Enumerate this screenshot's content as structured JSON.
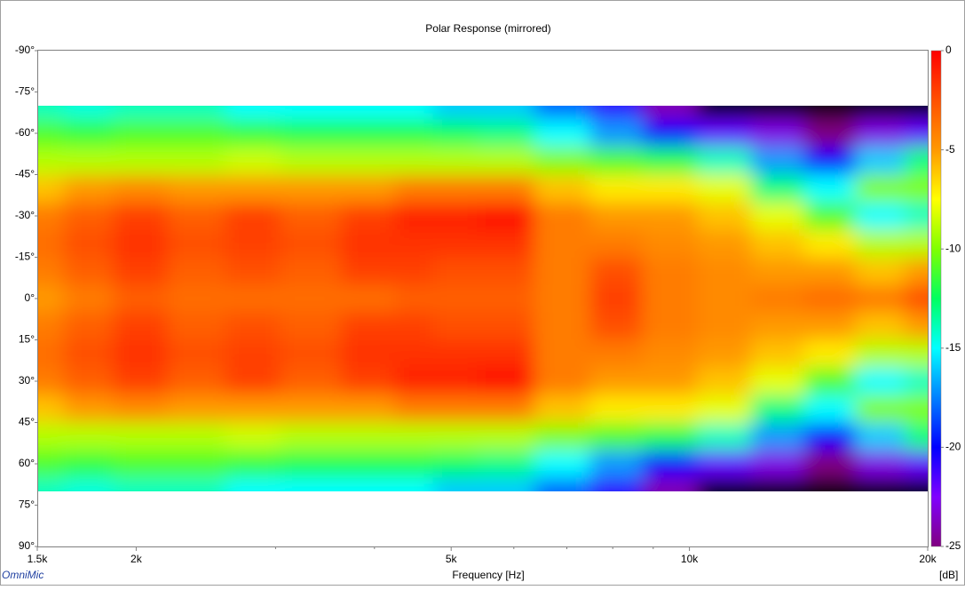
{
  "chart_data": {
    "type": "heatmap",
    "title": "Polar Response (mirrored)",
    "x_label": "Frequency [Hz]",
    "colorbar_label": "[dB]",
    "watermark": "OmniMic",
    "x_log": true,
    "xlim": [
      1500,
      20000
    ],
    "xticks": [
      {
        "value": 1500,
        "label": "1.5k"
      },
      {
        "value": 2000,
        "label": "2k"
      },
      {
        "value": 5000,
        "label": "5k"
      },
      {
        "value": 10000,
        "label": "10k"
      },
      {
        "value": 20000,
        "label": "20k"
      }
    ],
    "xminorticks": [
      3000,
      4000,
      6000,
      7000,
      8000,
      9000
    ],
    "ylim": [
      -90,
      90
    ],
    "yticks": [
      {
        "value": -90,
        "label": "-90°"
      },
      {
        "value": -75,
        "label": "-75°"
      },
      {
        "value": -60,
        "label": "-60°"
      },
      {
        "value": -45,
        "label": "-45°"
      },
      {
        "value": -30,
        "label": "-30°"
      },
      {
        "value": -15,
        "label": "-15°"
      },
      {
        "value": 0,
        "label": "0°"
      },
      {
        "value": 15,
        "label": "15°"
      },
      {
        "value": 30,
        "label": "30°"
      },
      {
        "value": 45,
        "label": "45°"
      },
      {
        "value": 60,
        "label": "60°"
      },
      {
        "value": 75,
        "label": "75°"
      },
      {
        "value": 90,
        "label": "90°"
      }
    ],
    "zlim": [
      -25,
      0
    ],
    "zticks": [
      0,
      -5,
      -10,
      -15,
      -20,
      -25
    ],
    "colormap": [
      "#800080",
      "#8000ff",
      "#0000ff",
      "#0080ff",
      "#00ffff",
      "#00ff60",
      "#80ff00",
      "#ffff00",
      "#ff9900",
      "#ff5000",
      "#ff0000"
    ],
    "below_color": "#000000",
    "x": [
      1500,
      1750,
      2000,
      2400,
      2800,
      3300,
      4000,
      4500,
      5000,
      5800,
      7000,
      8000,
      9500,
      11000,
      13000,
      15000,
      17500,
      20000
    ],
    "y": [
      -70,
      -60,
      -50,
      -40,
      -30,
      -20,
      -10,
      0,
      10,
      20,
      30,
      40,
      50,
      60,
      70
    ],
    "z": [
      [
        -14,
        -14.5,
        -14,
        -14,
        -15,
        -15,
        -15,
        -15,
        -16,
        -16,
        -18,
        -21,
        -24,
        -26,
        -30,
        -30,
        -30,
        -30
      ],
      [
        -11,
        -11.5,
        -11,
        -11,
        -11.5,
        -12,
        -12,
        -12,
        -12.5,
        -13,
        -15,
        -17,
        -20,
        -22,
        -23,
        -25,
        -23,
        -22
      ],
      [
        -9,
        -9,
        -9,
        -9,
        -8.5,
        -9,
        -9,
        -9,
        -9,
        -9,
        -10,
        -11,
        -12,
        -14,
        -17,
        -20,
        -16,
        -13
      ],
      [
        -6,
        -5,
        -4.5,
        -5,
        -5,
        -5,
        -5,
        -4,
        -4,
        -4,
        -6,
        -7,
        -7,
        -8,
        -13,
        -15,
        -10,
        -10
      ],
      [
        -4,
        -3,
        -2,
        -3,
        -2,
        -3,
        -2,
        -1,
        -1,
        -0.5,
        -4,
        -5,
        -5,
        -6,
        -8,
        -11,
        -15,
        -14
      ],
      [
        -3.5,
        -2.5,
        -1.5,
        -2.5,
        -2,
        -2.5,
        -1.5,
        -1.5,
        -1.5,
        -1.5,
        -4,
        -4,
        -4.5,
        -5,
        -6,
        -7,
        -9,
        -9
      ],
      [
        -4,
        -3,
        -2,
        -3,
        -2.5,
        -3,
        -2,
        -2,
        -2.5,
        -2.5,
        -4,
        -2.5,
        -4,
        -4.5,
        -5,
        -5,
        -6,
        -5
      ],
      [
        -5,
        -4,
        -3,
        -3.5,
        -3.5,
        -3.5,
        -3.5,
        -3,
        -3,
        -3,
        -4,
        -2,
        -4,
        -4.5,
        -4,
        -3.5,
        -4,
        -2.5
      ],
      [
        -4,
        -3,
        -2,
        -3,
        -2.5,
        -3,
        -2,
        -2,
        -2.5,
        -2.5,
        -4,
        -2.5,
        -4,
        -4.5,
        -5,
        -5,
        -6,
        -5
      ],
      [
        -3.5,
        -2.5,
        -1.5,
        -2.5,
        -2,
        -2.5,
        -1.5,
        -1.5,
        -1.5,
        -1.5,
        -4,
        -4,
        -4.5,
        -5,
        -6,
        -7,
        -9,
        -9
      ],
      [
        -4,
        -3,
        -2,
        -3,
        -2,
        -3,
        -2,
        -1,
        -1,
        -0.5,
        -4,
        -5,
        -5,
        -6,
        -8,
        -11,
        -15,
        -14
      ],
      [
        -6,
        -5,
        -4.5,
        -5,
        -5,
        -5,
        -5,
        -4,
        -4,
        -4,
        -6,
        -7,
        -7,
        -8,
        -13,
        -15,
        -10,
        -10
      ],
      [
        -9,
        -9,
        -9,
        -9,
        -8.5,
        -9,
        -9,
        -9,
        -9,
        -9,
        -10,
        -11,
        -12,
        -14,
        -17,
        -20,
        -16,
        -13
      ],
      [
        -11,
        -11.5,
        -11,
        -11,
        -11.5,
        -12,
        -12,
        -12,
        -12.5,
        -13,
        -15,
        -17,
        -20,
        -22,
        -23,
        -25,
        -23,
        -22
      ],
      [
        -14,
        -14.5,
        -14,
        -14,
        -15,
        -15,
        -15,
        -15,
        -16,
        -16,
        -18,
        -21,
        -24,
        -26,
        -30,
        -30,
        -30,
        -30
      ]
    ]
  }
}
